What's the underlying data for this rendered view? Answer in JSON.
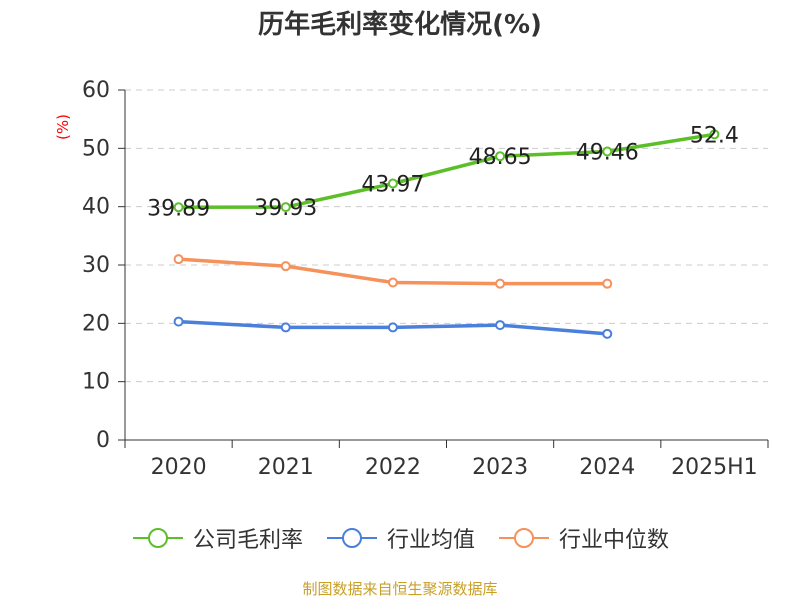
{
  "title": "历年毛利率变化情况(%)",
  "source_text": "制图数据来自恒生聚源数据库",
  "colors": {
    "title": "#333333",
    "axis": "#333333",
    "grid": "#cccccc",
    "ylabel": "#ff0000",
    "source": "#c8a028"
  },
  "chart_data": {
    "type": "line",
    "title": "历年毛利率变化情况(%)",
    "xlabel": "",
    "ylabel": "(%)",
    "ylim": [
      0,
      60
    ],
    "yticks": [
      0,
      10,
      20,
      30,
      40,
      50,
      60
    ],
    "grid": "horizontal dashed",
    "legend_position": "bottom",
    "categories": [
      "2020",
      "2021",
      "2022",
      "2023",
      "2024",
      "2025H1"
    ],
    "series": [
      {
        "name": "公司毛利率",
        "color": "#5cbf2a",
        "values": [
          39.89,
          39.93,
          43.97,
          48.65,
          49.46,
          52.4
        ],
        "show_labels": true
      },
      {
        "name": "行业均值",
        "color": "#4a7fdb",
        "values": [
          20.3,
          19.3,
          19.3,
          19.7,
          18.2,
          null
        ],
        "show_labels": false
      },
      {
        "name": "行业中位数",
        "color": "#f5915a",
        "values": [
          31.0,
          29.8,
          27.0,
          26.8,
          26.8,
          null
        ],
        "show_labels": false
      }
    ],
    "data_labels": [
      "39.89",
      "39.93",
      "43.97",
      "48.65",
      "49.46",
      "52.4"
    ]
  }
}
